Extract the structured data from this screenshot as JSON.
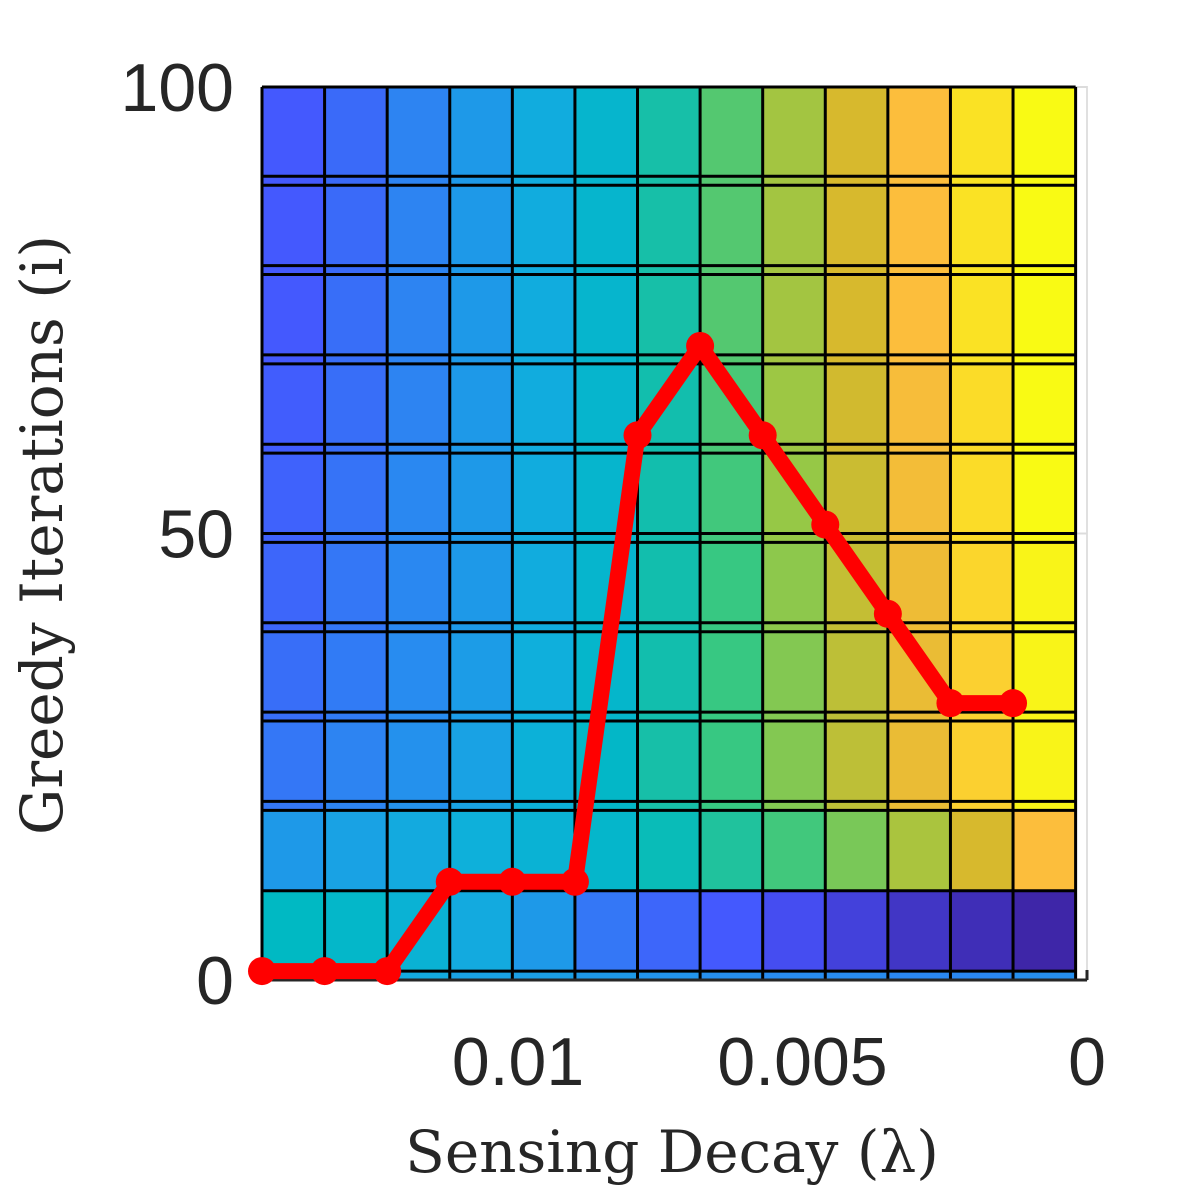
{
  "chart_data": {
    "type": "heatmap",
    "xlabel": "Sensing Decay (λ)",
    "ylabel": "Greedy Iterations (i)",
    "xlim": [
      0.0145,
      0
    ],
    "ylim": [
      0,
      100
    ],
    "x_ticks": [
      {
        "value": 0.01,
        "label": "0.01"
      },
      {
        "value": 0.005,
        "label": "0.005"
      },
      {
        "value": 0,
        "label": "0"
      }
    ],
    "y_ticks": [
      {
        "value": 0,
        "label": "0"
      },
      {
        "value": 50,
        "label": "50"
      },
      {
        "value": 100,
        "label": "100"
      }
    ],
    "grid": true,
    "colormap": "parula",
    "heatmap": {
      "x": [
        0.0145,
        0.0134,
        0.0123,
        0.0112,
        0.0101,
        0.009,
        0.0079,
        0.0068,
        0.0057,
        0.0046,
        0.0035,
        0.0024,
        0.0013
      ],
      "row_edges": [
        0,
        1,
        10,
        19,
        20,
        29,
        30,
        39,
        40,
        49,
        50,
        59,
        60,
        69,
        70,
        79,
        80,
        89,
        90,
        100
      ],
      "rows": [
        {
          "range": [
            0,
            1
          ],
          "values": [
            0.4,
            0.42,
            0.36,
            0.33,
            0.32,
            0.3,
            0.28,
            0.26,
            0.25,
            0.25,
            0.24,
            0.24,
            0.26
          ]
        },
        {
          "range": [
            1,
            10
          ],
          "values": [
            0.5,
            0.47,
            0.42,
            0.36,
            0.3,
            0.2,
            0.16,
            0.13,
            0.1,
            0.07,
            0.04,
            0.02,
            0.0
          ]
        },
        {
          "range": [
            10,
            19
          ],
          "values": [
            0.3,
            0.33,
            0.36,
            0.39,
            0.42,
            0.46,
            0.52,
            0.57,
            0.63,
            0.69,
            0.75,
            0.82,
            0.9
          ]
        },
        {
          "range": [
            19,
            29
          ],
          "values": [
            0.2,
            0.23,
            0.27,
            0.33,
            0.4,
            0.48,
            0.55,
            0.62,
            0.7,
            0.78,
            0.86,
            0.93,
            0.99
          ]
        },
        {
          "range": [
            29,
            39
          ],
          "values": [
            0.18,
            0.21,
            0.25,
            0.31,
            0.38,
            0.46,
            0.54,
            0.62,
            0.7,
            0.78,
            0.86,
            0.93,
            0.99
          ]
        },
        {
          "range": [
            39,
            49
          ],
          "values": [
            0.16,
            0.2,
            0.24,
            0.3,
            0.37,
            0.45,
            0.54,
            0.62,
            0.71,
            0.79,
            0.87,
            0.94,
            0.99
          ]
        },
        {
          "range": [
            49,
            59
          ],
          "values": [
            0.15,
            0.19,
            0.24,
            0.3,
            0.37,
            0.45,
            0.54,
            0.63,
            0.72,
            0.8,
            0.88,
            0.95,
            1.0
          ]
        },
        {
          "range": [
            59,
            69
          ],
          "values": [
            0.14,
            0.18,
            0.23,
            0.3,
            0.37,
            0.45,
            0.54,
            0.64,
            0.73,
            0.81,
            0.89,
            0.95,
            1.0
          ]
        },
        {
          "range": [
            69,
            79
          ],
          "values": [
            0.13,
            0.18,
            0.23,
            0.3,
            0.37,
            0.45,
            0.55,
            0.65,
            0.74,
            0.82,
            0.9,
            0.96,
            1.0
          ]
        },
        {
          "range": [
            79,
            89
          ],
          "values": [
            0.13,
            0.17,
            0.23,
            0.3,
            0.37,
            0.45,
            0.55,
            0.65,
            0.74,
            0.82,
            0.9,
            0.96,
            1.0
          ]
        },
        {
          "range": [
            89,
            100
          ],
          "values": [
            0.13,
            0.17,
            0.23,
            0.3,
            0.37,
            0.45,
            0.55,
            0.65,
            0.74,
            0.82,
            0.9,
            0.96,
            1.0
          ]
        }
      ]
    },
    "series": [
      {
        "color": "#ff0000",
        "x": [
          0.0145,
          0.0134,
          0.0123,
          0.0112,
          0.0101,
          0.009,
          0.0079,
          0.0068,
          0.0057,
          0.0046,
          0.0035,
          0.0024,
          0.0013
        ],
        "y": [
          1,
          1,
          1,
          11,
          11,
          11,
          61,
          71,
          61,
          51,
          41,
          31,
          31
        ]
      }
    ]
  }
}
